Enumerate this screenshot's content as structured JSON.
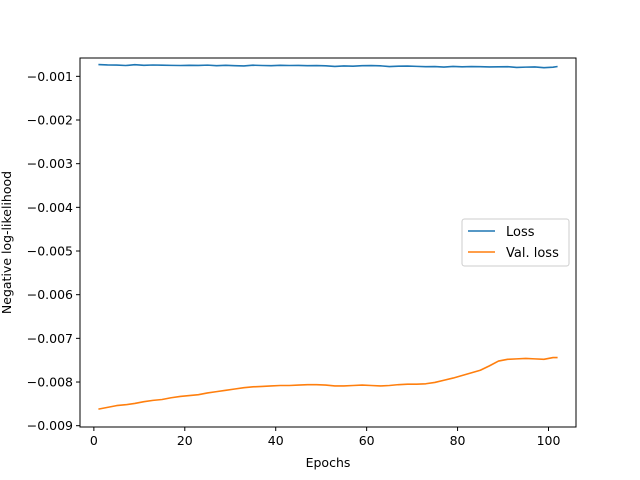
{
  "chart_data": {
    "type": "line",
    "title": "",
    "xlabel": "Epochs",
    "ylabel": "Negative log-likelihood",
    "xlim": [
      -3.05,
      106.05
    ],
    "ylim": [
      -0.00903,
      -0.00058
    ],
    "x_ticks": [
      0,
      20,
      40,
      60,
      80,
      100
    ],
    "y_ticks": [
      -0.001,
      -0.002,
      -0.003,
      -0.004,
      -0.005,
      -0.006,
      -0.007,
      -0.008,
      -0.009
    ],
    "x_tick_labels": [
      "0",
      "20",
      "40",
      "60",
      "80",
      "100"
    ],
    "y_tick_labels": [
      "−0.001",
      "−0.002",
      "−0.003",
      "−0.004",
      "−0.005",
      "−0.006",
      "−0.007",
      "−0.008",
      "−0.009"
    ],
    "grid": false,
    "legend_position": "center-right",
    "series": [
      {
        "name": "Loss",
        "color": "#1f77b4",
        "x": [
          1,
          3,
          5,
          7,
          9,
          11,
          13,
          15,
          17,
          19,
          21,
          23,
          25,
          27,
          29,
          31,
          33,
          35,
          37,
          39,
          41,
          43,
          45,
          47,
          49,
          51,
          53,
          55,
          57,
          59,
          61,
          63,
          65,
          67,
          69,
          71,
          73,
          75,
          77,
          79,
          81,
          83,
          85,
          87,
          89,
          91,
          93,
          95,
          97,
          99,
          101,
          102
        ],
        "values": [
          -0.00073,
          -0.000738,
          -0.000741,
          -0.000752,
          -0.000734,
          -0.000748,
          -0.00074,
          -0.000745,
          -0.000749,
          -0.000752,
          -0.000747,
          -0.000751,
          -0.000743,
          -0.000755,
          -0.000748,
          -0.000756,
          -0.000762,
          -0.000745,
          -0.000752,
          -0.000755,
          -0.000748,
          -0.000752,
          -0.000751,
          -0.000755,
          -0.000754,
          -0.000758,
          -0.000773,
          -0.000762,
          -0.000768,
          -0.000757,
          -0.000754,
          -0.000759,
          -0.000775,
          -0.000767,
          -0.000765,
          -0.000772,
          -0.000779,
          -0.000776,
          -0.000788,
          -0.000773,
          -0.000782,
          -0.000775,
          -0.000779,
          -0.000785,
          -0.000781,
          -0.000779,
          -0.000795,
          -0.000789,
          -0.000785,
          -0.000801,
          -0.00079,
          -0.000775
        ]
      },
      {
        "name": "Val. loss",
        "color": "#ff7f0e",
        "x": [
          1,
          3,
          5,
          7,
          9,
          11,
          13,
          15,
          17,
          19,
          21,
          23,
          25,
          27,
          29,
          31,
          33,
          35,
          37,
          39,
          41,
          43,
          45,
          47,
          49,
          51,
          53,
          55,
          57,
          59,
          61,
          63,
          65,
          67,
          69,
          71,
          73,
          75,
          77,
          79,
          81,
          83,
          85,
          87,
          89,
          91,
          93,
          95,
          97,
          99,
          101,
          102
        ],
        "values": [
          -0.00862,
          -0.00858,
          -0.00854,
          -0.00852,
          -0.00849,
          -0.00845,
          -0.00842,
          -0.0084,
          -0.00836,
          -0.00833,
          -0.00831,
          -0.00829,
          -0.00825,
          -0.00822,
          -0.00819,
          -0.00816,
          -0.00813,
          -0.00811,
          -0.0081,
          -0.00809,
          -0.00808,
          -0.00808,
          -0.00807,
          -0.00806,
          -0.00806,
          -0.00807,
          -0.00809,
          -0.00809,
          -0.00808,
          -0.00807,
          -0.00808,
          -0.00809,
          -0.00808,
          -0.00806,
          -0.00805,
          -0.00805,
          -0.00804,
          -0.00801,
          -0.00796,
          -0.00791,
          -0.00785,
          -0.00779,
          -0.00773,
          -0.00763,
          -0.00752,
          -0.00748,
          -0.00747,
          -0.00746,
          -0.00747,
          -0.00748,
          -0.00744,
          -0.00744
        ]
      }
    ]
  }
}
